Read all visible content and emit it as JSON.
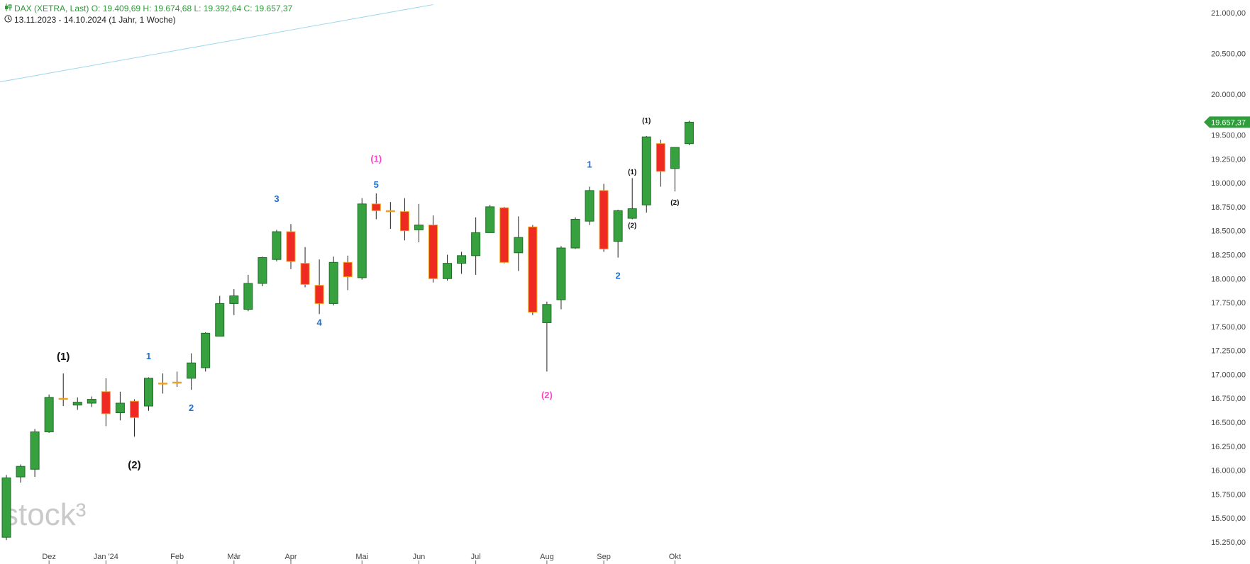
{
  "header": {
    "line1": "DAX (XETRA, Last)  O: 19.409,69  H: 19.674,68  L: 19.392,64  C: 19.657,37",
    "line2": "13.11.2023 - 14.10.2024  (1 Jahr, 1 Woche)",
    "line1_icon": "candlestick-icon",
    "line2_icon": "clock-icon"
  },
  "watermark": "stock³",
  "colors": {
    "up": "#37a03f",
    "down": "#ee2a22",
    "down_border": "#f0a020",
    "wave_blue": "#1e6fd0",
    "wave_pink": "#ff44cc",
    "wave_black": "#111111",
    "trendline": "#9fd8ec",
    "last_price_tag": "#2f9e3b"
  },
  "last_price": {
    "value": 19657.37,
    "label": "19.657,37"
  },
  "chart_data": {
    "type": "candlestick",
    "title": "DAX (XETRA, Last)",
    "timeframe": "weekly",
    "ylim": [
      15250,
      21000
    ],
    "y_ticks": [
      15250,
      15500,
      15750,
      16000,
      16250,
      16500,
      16750,
      17000,
      17250,
      17500,
      17750,
      18000,
      18250,
      18500,
      18750,
      19000,
      19250,
      19500,
      20000,
      20500,
      21000
    ],
    "y_tick_labels": [
      "15.250,00",
      "15.500,00",
      "15.750,00",
      "16.000,00",
      "16.250,00",
      "16.500,00",
      "16.750,00",
      "17.000,00",
      "17.250,00",
      "17.500,00",
      "17.750,00",
      "18.000,00",
      "18.250,00",
      "18.500,00",
      "18.750,00",
      "19.000,00",
      "19.250,00",
      "19.500,00",
      "20.000,00",
      "20.500,00",
      "21.000,00"
    ],
    "x_ticks": [
      {
        "label": "Dez",
        "week": 3
      },
      {
        "label": "Jan '24",
        "week": 7
      },
      {
        "label": "Feb",
        "week": 12
      },
      {
        "label": "Mär",
        "week": 16
      },
      {
        "label": "Apr",
        "week": 20
      },
      {
        "label": "Mai",
        "week": 25
      },
      {
        "label": "Jun",
        "week": 29
      },
      {
        "label": "Jul",
        "week": 33
      },
      {
        "label": "Aug",
        "week": 38
      },
      {
        "label": "Sep",
        "week": 42
      },
      {
        "label": "Okt",
        "week": 47
      }
    ],
    "candles": [
      {
        "week": 0,
        "o": 15300,
        "h": 15950,
        "l": 15270,
        "c": 15920
      },
      {
        "week": 1,
        "o": 15930,
        "h": 16060,
        "l": 15870,
        "c": 16040
      },
      {
        "week": 2,
        "o": 16010,
        "h": 16430,
        "l": 15930,
        "c": 16400
      },
      {
        "week": 3,
        "o": 16400,
        "h": 16790,
        "l": 16390,
        "c": 16760
      },
      {
        "week": 4,
        "o": 16750,
        "h": 17010,
        "l": 16670,
        "c": 16750
      },
      {
        "week": 5,
        "o": 16680,
        "h": 16760,
        "l": 16630,
        "c": 16710
      },
      {
        "week": 6,
        "o": 16700,
        "h": 16770,
        "l": 16660,
        "c": 16740
      },
      {
        "week": 7,
        "o": 16820,
        "h": 16960,
        "l": 16460,
        "c": 16590
      },
      {
        "week": 8,
        "o": 16600,
        "h": 16820,
        "l": 16520,
        "c": 16700
      },
      {
        "week": 9,
        "o": 16720,
        "h": 16740,
        "l": 16350,
        "c": 16550
      },
      {
        "week": 10,
        "o": 16670,
        "h": 16970,
        "l": 16620,
        "c": 16960
      },
      {
        "week": 11,
        "o": 16910,
        "h": 17010,
        "l": 16800,
        "c": 16910
      },
      {
        "week": 12,
        "o": 16920,
        "h": 17030,
        "l": 16870,
        "c": 16920
      },
      {
        "week": 13,
        "o": 16960,
        "h": 17220,
        "l": 16840,
        "c": 17120
      },
      {
        "week": 14,
        "o": 17070,
        "h": 17440,
        "l": 17030,
        "c": 17430
      },
      {
        "week": 15,
        "o": 17400,
        "h": 17820,
        "l": 17400,
        "c": 17740
      },
      {
        "week": 16,
        "o": 17740,
        "h": 17890,
        "l": 17620,
        "c": 17820
      },
      {
        "week": 17,
        "o": 17680,
        "h": 18040,
        "l": 17660,
        "c": 17950
      },
      {
        "week": 18,
        "o": 17950,
        "h": 18230,
        "l": 17920,
        "c": 18220
      },
      {
        "week": 19,
        "o": 18200,
        "h": 18510,
        "l": 18180,
        "c": 18490
      },
      {
        "week": 20,
        "o": 18490,
        "h": 18570,
        "l": 18100,
        "c": 18180
      },
      {
        "week": 21,
        "o": 18160,
        "h": 18330,
        "l": 17910,
        "c": 17940
      },
      {
        "week": 22,
        "o": 17930,
        "h": 18200,
        "l": 17630,
        "c": 17740
      },
      {
        "week": 23,
        "o": 17740,
        "h": 18230,
        "l": 17720,
        "c": 18170
      },
      {
        "week": 24,
        "o": 18170,
        "h": 18240,
        "l": 17880,
        "c": 18020
      },
      {
        "week": 25,
        "o": 18010,
        "h": 18840,
        "l": 17990,
        "c": 18780
      },
      {
        "week": 26,
        "o": 18780,
        "h": 18890,
        "l": 18620,
        "c": 18710
      },
      {
        "week": 27,
        "o": 18710,
        "h": 18800,
        "l": 18520,
        "c": 18710
      },
      {
        "week": 28,
        "o": 18700,
        "h": 18840,
        "l": 18400,
        "c": 18500
      },
      {
        "week": 29,
        "o": 18510,
        "h": 18780,
        "l": 18380,
        "c": 18560
      },
      {
        "week": 30,
        "o": 18560,
        "h": 18660,
        "l": 17960,
        "c": 18000
      },
      {
        "week": 31,
        "o": 18000,
        "h": 18250,
        "l": 17980,
        "c": 18160
      },
      {
        "week": 32,
        "o": 18160,
        "h": 18280,
        "l": 18050,
        "c": 18240
      },
      {
        "week": 33,
        "o": 18240,
        "h": 18640,
        "l": 18040,
        "c": 18480
      },
      {
        "week": 34,
        "o": 18480,
        "h": 18770,
        "l": 18480,
        "c": 18750
      },
      {
        "week": 35,
        "o": 18740,
        "h": 18750,
        "l": 18160,
        "c": 18170
      },
      {
        "week": 36,
        "o": 18270,
        "h": 18650,
        "l": 18080,
        "c": 18430
      },
      {
        "week": 37,
        "o": 18540,
        "h": 18560,
        "l": 17620,
        "c": 17650
      },
      {
        "week": 38,
        "o": 17540,
        "h": 17760,
        "l": 17030,
        "c": 17730
      },
      {
        "week": 39,
        "o": 17780,
        "h": 18340,
        "l": 17680,
        "c": 18320
      },
      {
        "week": 40,
        "o": 18320,
        "h": 18640,
        "l": 18310,
        "c": 18620
      },
      {
        "week": 41,
        "o": 18600,
        "h": 18960,
        "l": 18560,
        "c": 18920
      },
      {
        "week": 42,
        "o": 18920,
        "h": 18990,
        "l": 18280,
        "c": 18310
      },
      {
        "week": 43,
        "o": 18390,
        "h": 18720,
        "l": 18220,
        "c": 18710
      },
      {
        "week": 44,
        "o": 18630,
        "h": 19050,
        "l": 18620,
        "c": 18730
      },
      {
        "week": 45,
        "o": 18770,
        "h": 19490,
        "l": 18690,
        "c": 19480
      },
      {
        "week": 46,
        "o": 19410,
        "h": 19450,
        "l": 18960,
        "c": 19120
      },
      {
        "week": 47,
        "o": 19150,
        "h": 19370,
        "l": 18910,
        "c": 19370
      },
      {
        "week": 48,
        "o": 19409.69,
        "h": 19674.68,
        "l": 19392.64,
        "c": 19657.37
      }
    ],
    "wave_labels": [
      {
        "text": "(1)",
        "week": 4,
        "price": 17150,
        "color": "black",
        "size": "large"
      },
      {
        "text": "(2)",
        "week": 9,
        "price": 16020,
        "color": "black",
        "size": "large"
      },
      {
        "text": "1",
        "week": 10,
        "price": 17160,
        "color": "blue",
        "size": "medium"
      },
      {
        "text": "2",
        "week": 13,
        "price": 16620,
        "color": "blue",
        "size": "medium"
      },
      {
        "text": "3",
        "week": 19,
        "price": 18800,
        "color": "blue",
        "size": "medium"
      },
      {
        "text": "4",
        "week": 22,
        "price": 17510,
        "color": "blue",
        "size": "medium"
      },
      {
        "text": "(1)",
        "week": 26,
        "price": 19220,
        "color": "pink",
        "size": "medium"
      },
      {
        "text": "5",
        "week": 26,
        "price": 18950,
        "color": "blue",
        "size": "medium"
      },
      {
        "text": "(2)",
        "week": 38,
        "price": 16750,
        "color": "pink",
        "size": "medium"
      },
      {
        "text": "1",
        "week": 41,
        "price": 19160,
        "color": "blue",
        "size": "medium"
      },
      {
        "text": "2",
        "week": 43,
        "price": 18000,
        "color": "blue",
        "size": "medium"
      },
      {
        "text": "(1)",
        "week": 44,
        "price": 19090,
        "color": "black",
        "size": "small"
      },
      {
        "text": "(2)",
        "week": 44,
        "price": 18530,
        "color": "black",
        "size": "small"
      },
      {
        "text": "(1)",
        "week": 45,
        "price": 19650,
        "color": "black",
        "size": "small"
      },
      {
        "text": "(2)",
        "week": 47,
        "price": 18770,
        "color": "black",
        "size": "small"
      }
    ],
    "trendline": {
      "from": {
        "week": -0.5,
        "price": 20150
      },
      "to": {
        "week": 30,
        "price": 21100
      }
    },
    "grid": false,
    "legend": "none"
  }
}
